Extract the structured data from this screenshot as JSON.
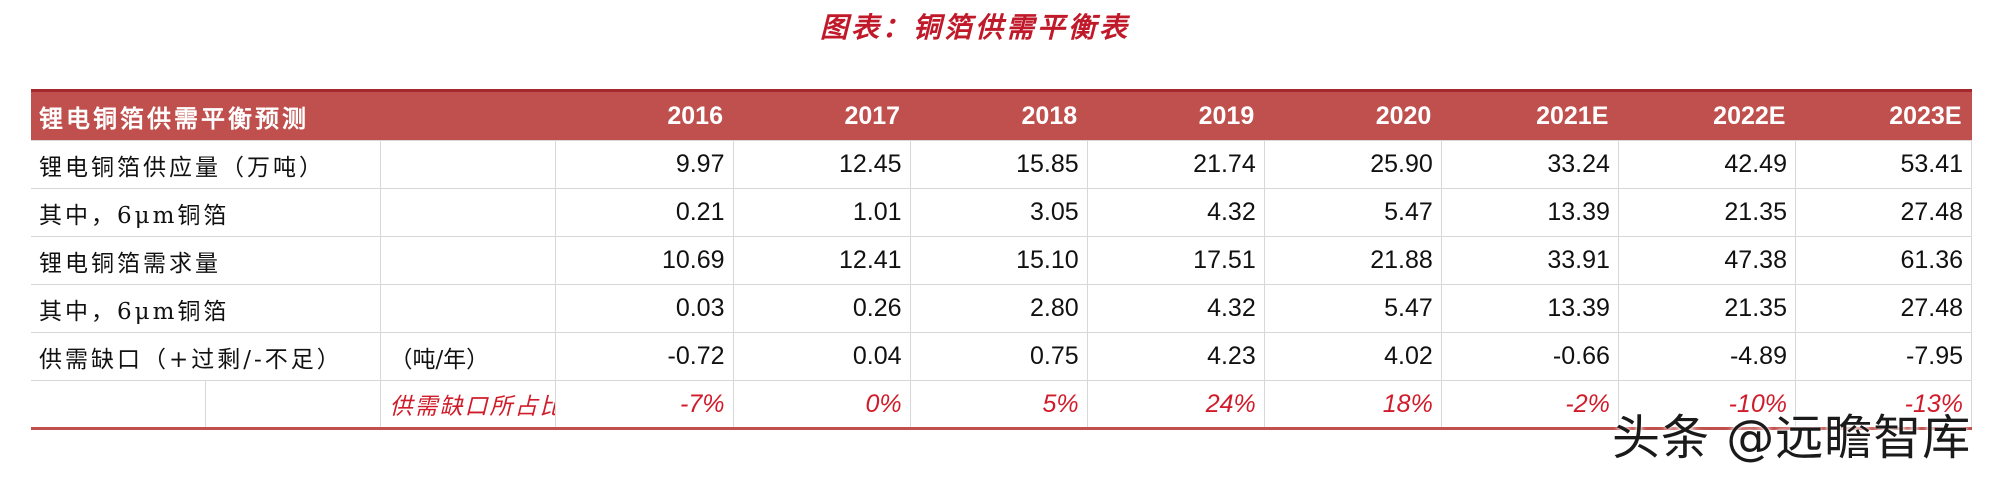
{
  "title": "图表：铜箔供需平衡表",
  "table": {
    "header_label": "锂电铜箔供需平衡预测",
    "years": [
      "2016",
      "2017",
      "2018",
      "2019",
      "2020",
      "2021E",
      "2022E",
      "2023E"
    ],
    "rows": [
      {
        "label": "锂电铜箔供应量（万吨）",
        "unit": "",
        "values": [
          "9.97",
          "12.45",
          "15.85",
          "21.74",
          "25.90",
          "33.24",
          "42.49",
          "53.41"
        ]
      },
      {
        "label": "其中，6μm铜箔",
        "unit": "",
        "values": [
          "0.21",
          "1.01",
          "3.05",
          "4.32",
          "5.47",
          "13.39",
          "21.35",
          "27.48"
        ]
      },
      {
        "label": "锂电铜箔需求量",
        "unit": "",
        "values": [
          "10.69",
          "12.41",
          "15.10",
          "17.51",
          "21.88",
          "33.91",
          "47.38",
          "61.36"
        ]
      },
      {
        "label": "其中，6μm铜箔",
        "unit": "",
        "values": [
          "0.03",
          "0.26",
          "2.80",
          "4.32",
          "5.47",
          "13.39",
          "21.35",
          "27.48"
        ]
      },
      {
        "label": "供需缺口（+过剩/-不足）",
        "unit": "（吨/年）",
        "values": [
          "-0.72",
          "0.04",
          "0.75",
          "4.23",
          "4.02",
          "-0.66",
          "-4.89",
          "-7.95"
        ]
      }
    ],
    "ratio_row": {
      "label": "供需缺口所占比例",
      "values": [
        "-7%",
        "0%",
        "5%",
        "24%",
        "18%",
        "-2%",
        "-10%",
        "-13%"
      ]
    }
  },
  "watermark": "头条 @远瞻智库"
}
